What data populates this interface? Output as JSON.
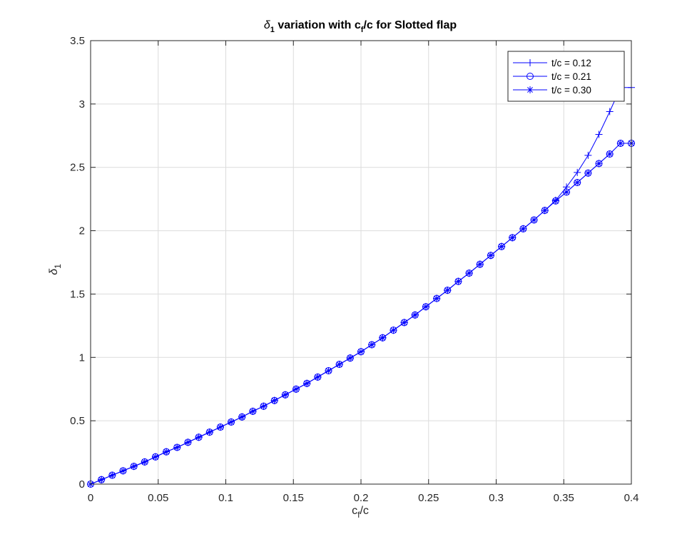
{
  "chart_data": {
    "type": "line",
    "title": {
      "prefix": "δ",
      "prefix_sub": "1",
      "middle": " variation with c",
      "middle_sub": "f",
      "suffix": "/c for Slotted flap"
    },
    "xlabel": {
      "main": "c",
      "sub": "f",
      "tail": "/c"
    },
    "ylabel": {
      "main": "δ",
      "sub": "1"
    },
    "xlim": [
      0,
      0.4
    ],
    "ylim": [
      0,
      3.5
    ],
    "xticks": [
      0,
      0.05,
      0.1,
      0.15,
      0.2,
      0.25,
      0.3,
      0.35,
      0.4
    ],
    "xtick_labels": [
      "0",
      "0.05",
      "0.1",
      "0.15",
      "0.2",
      "0.25",
      "0.3",
      "0.35",
      "0.4"
    ],
    "yticks": [
      0,
      0.5,
      1,
      1.5,
      2,
      2.5,
      3,
      3.5
    ],
    "ytick_labels": [
      "0",
      "0.5",
      "1",
      "1.5",
      "2",
      "2.5",
      "3",
      "3.5"
    ],
    "grid": true,
    "legend_position": "top-right",
    "line_color": "#0000ff",
    "x": [
      0,
      0.008,
      0.016,
      0.024,
      0.032,
      0.04,
      0.048,
      0.056,
      0.064,
      0.072,
      0.08,
      0.088,
      0.096,
      0.104,
      0.112,
      0.12,
      0.128,
      0.136,
      0.144,
      0.152,
      0.16,
      0.168,
      0.176,
      0.184,
      0.192,
      0.2,
      0.208,
      0.216,
      0.224,
      0.232,
      0.24,
      0.248,
      0.256,
      0.264,
      0.272,
      0.28,
      0.288,
      0.296,
      0.304,
      0.312,
      0.32,
      0.328,
      0.336,
      0.344,
      0.352,
      0.36,
      0.368,
      0.376,
      0.384,
      0.392,
      0.4
    ],
    "series": [
      {
        "name": "t/c = 0.12",
        "marker": "plus",
        "values": [
          0,
          0.035,
          0.07,
          0.105,
          0.14,
          0.175,
          0.215,
          0.255,
          0.29,
          0.33,
          0.37,
          0.41,
          0.45,
          0.49,
          0.53,
          0.575,
          0.615,
          0.66,
          0.705,
          0.75,
          0.795,
          0.845,
          0.895,
          0.945,
          0.995,
          1.045,
          1.1,
          1.155,
          1.215,
          1.275,
          1.335,
          1.4,
          1.465,
          1.53,
          1.6,
          1.665,
          1.735,
          1.805,
          1.875,
          1.945,
          2.015,
          2.085,
          2.16,
          2.24,
          2.345,
          2.46,
          2.595,
          2.76,
          2.94,
          3.13,
          3.13
        ]
      },
      {
        "name": "t/c = 0.21",
        "marker": "circle",
        "values": [
          0,
          0.035,
          0.07,
          0.105,
          0.14,
          0.175,
          0.215,
          0.255,
          0.29,
          0.33,
          0.37,
          0.41,
          0.45,
          0.49,
          0.53,
          0.575,
          0.615,
          0.66,
          0.705,
          0.75,
          0.795,
          0.845,
          0.895,
          0.945,
          0.995,
          1.045,
          1.1,
          1.155,
          1.215,
          1.275,
          1.335,
          1.4,
          1.465,
          1.53,
          1.6,
          1.665,
          1.735,
          1.805,
          1.875,
          1.945,
          2.015,
          2.085,
          2.16,
          2.235,
          2.305,
          2.38,
          2.455,
          2.53,
          2.605,
          2.69,
          2.69
        ]
      },
      {
        "name": "t/c = 0.30",
        "marker": "star",
        "values": [
          0,
          0.035,
          0.07,
          0.105,
          0.14,
          0.175,
          0.215,
          0.255,
          0.29,
          0.33,
          0.37,
          0.41,
          0.45,
          0.49,
          0.53,
          0.575,
          0.615,
          0.66,
          0.705,
          0.75,
          0.795,
          0.845,
          0.895,
          0.945,
          0.995,
          1.045,
          1.1,
          1.155,
          1.215,
          1.275,
          1.335,
          1.4,
          1.465,
          1.53,
          1.6,
          1.665,
          1.735,
          1.805,
          1.875,
          1.945,
          2.015,
          2.085,
          2.16,
          2.235,
          2.305,
          2.38,
          2.455,
          2.53,
          2.605,
          2.69,
          2.69
        ]
      }
    ]
  }
}
